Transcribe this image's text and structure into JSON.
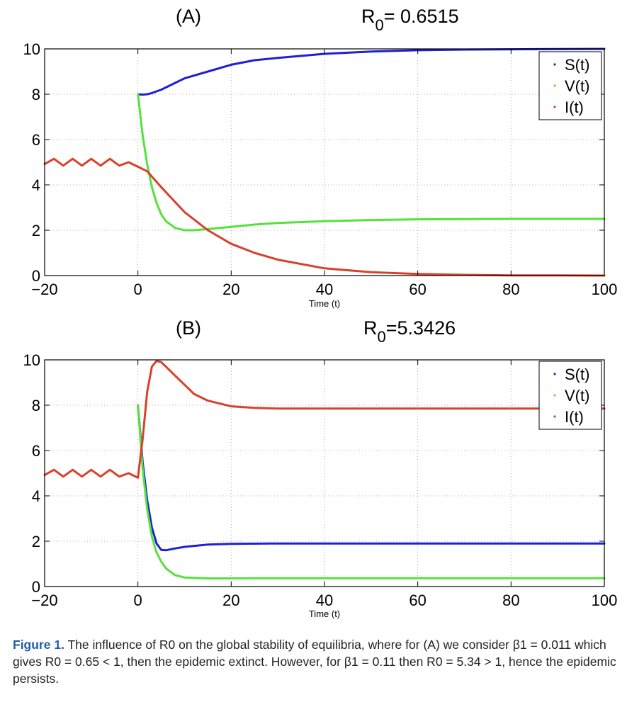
{
  "chart_data": [
    {
      "type": "line",
      "panel_label": "(A)",
      "title": "R",
      "title_sub": "0",
      "title_rest": "= 0.6515",
      "xlabel": "Time (t)",
      "ylabel": "",
      "xlim": [
        -20,
        100
      ],
      "ylim": [
        0,
        10
      ],
      "xticks": [
        -20,
        0,
        20,
        40,
        60,
        80,
        100
      ],
      "yticks": [
        0,
        2,
        4,
        6,
        8,
        10
      ],
      "grid": true,
      "legend_position": "top-right",
      "series": [
        {
          "name": "S(t)",
          "color": "#1f1fd6",
          "x": [
            0,
            1,
            2,
            3,
            5,
            8,
            10,
            15,
            20,
            25,
            30,
            40,
            50,
            60,
            70,
            80,
            90,
            100
          ],
          "y": [
            8.0,
            7.98,
            8.0,
            8.05,
            8.2,
            8.5,
            8.7,
            9.0,
            9.3,
            9.5,
            9.6,
            9.78,
            9.88,
            9.94,
            9.97,
            9.98,
            9.99,
            10.0
          ]
        },
        {
          "name": "V(t)",
          "color": "#55e23a",
          "x": [
            0,
            1,
            2,
            3,
            4,
            5,
            6,
            8,
            10,
            12,
            15,
            20,
            25,
            30,
            40,
            50,
            60,
            70,
            80,
            90,
            100
          ],
          "y": [
            8.0,
            6.2,
            4.9,
            3.9,
            3.2,
            2.7,
            2.4,
            2.1,
            2.0,
            2.0,
            2.05,
            2.15,
            2.25,
            2.32,
            2.4,
            2.45,
            2.48,
            2.49,
            2.5,
            2.5,
            2.5
          ]
        },
        {
          "name": "I(t)",
          "color": "#d8412a",
          "x": [
            -20,
            -18,
            -16,
            -14,
            -12,
            -10,
            -8,
            -6,
            -4,
            -2,
            0,
            2,
            5,
            10,
            15,
            20,
            25,
            30,
            40,
            50,
            60,
            70,
            80,
            90,
            100
          ],
          "y": [
            4.92,
            5.15,
            4.85,
            5.15,
            4.85,
            5.15,
            4.85,
            5.15,
            4.85,
            5.0,
            4.8,
            4.6,
            3.9,
            2.8,
            2.0,
            1.4,
            1.0,
            0.7,
            0.32,
            0.15,
            0.07,
            0.03,
            0.01,
            0.005,
            0.0
          ]
        }
      ]
    },
    {
      "type": "line",
      "panel_label": "(B)",
      "title": "R",
      "title_sub": "0",
      "title_rest": "=5.3426",
      "xlabel": "Time (t)",
      "ylabel": "",
      "xlim": [
        -20,
        100
      ],
      "ylim": [
        0,
        10
      ],
      "xticks": [
        -20,
        0,
        20,
        40,
        60,
        80,
        100
      ],
      "yticks": [
        0,
        2,
        4,
        6,
        8,
        10
      ],
      "grid": true,
      "legend_position": "top-right",
      "series": [
        {
          "name": "S(t)",
          "color": "#1f1fd6",
          "x": [
            0,
            1,
            2,
            3,
            4,
            5,
            6,
            8,
            10,
            15,
            20,
            30,
            40,
            60,
            80,
            100
          ],
          "y": [
            8.0,
            5.5,
            3.8,
            2.6,
            1.9,
            1.62,
            1.6,
            1.68,
            1.75,
            1.85,
            1.88,
            1.9,
            1.9,
            1.9,
            1.9,
            1.9
          ]
        },
        {
          "name": "V(t)",
          "color": "#55e23a",
          "x": [
            0,
            1,
            2,
            3,
            4,
            5,
            6,
            8,
            10,
            15,
            20,
            30,
            40,
            60,
            80,
            100
          ],
          "y": [
            8.0,
            5.2,
            3.4,
            2.2,
            1.5,
            1.1,
            0.8,
            0.5,
            0.4,
            0.36,
            0.36,
            0.37,
            0.37,
            0.37,
            0.37,
            0.37
          ]
        },
        {
          "name": "I(t)",
          "color": "#d8412a",
          "x": [
            -20,
            -18,
            -16,
            -14,
            -12,
            -10,
            -8,
            -6,
            -4,
            -2,
            0,
            1,
            2,
            3,
            4,
            5,
            6,
            8,
            10,
            12,
            15,
            20,
            25,
            30,
            40,
            60,
            80,
            100
          ],
          "y": [
            4.92,
            5.15,
            4.85,
            5.15,
            4.85,
            5.15,
            4.85,
            5.15,
            4.85,
            5.0,
            4.8,
            6.5,
            8.6,
            9.7,
            9.95,
            9.9,
            9.7,
            9.3,
            8.9,
            8.5,
            8.2,
            7.95,
            7.88,
            7.85,
            7.85,
            7.85,
            7.85,
            7.85
          ]
        }
      ]
    }
  ],
  "caption": {
    "label": "Figure 1.",
    "text": "The influence of R0 on the global stability of equilibria, where for (A) we consider β1 = 0.011 which gives R0 = 0.65 < 1, then the epidemic extinct. However, for β1 = 0.11 then R0 = 5.34 > 1, hence the epidemic persists."
  }
}
